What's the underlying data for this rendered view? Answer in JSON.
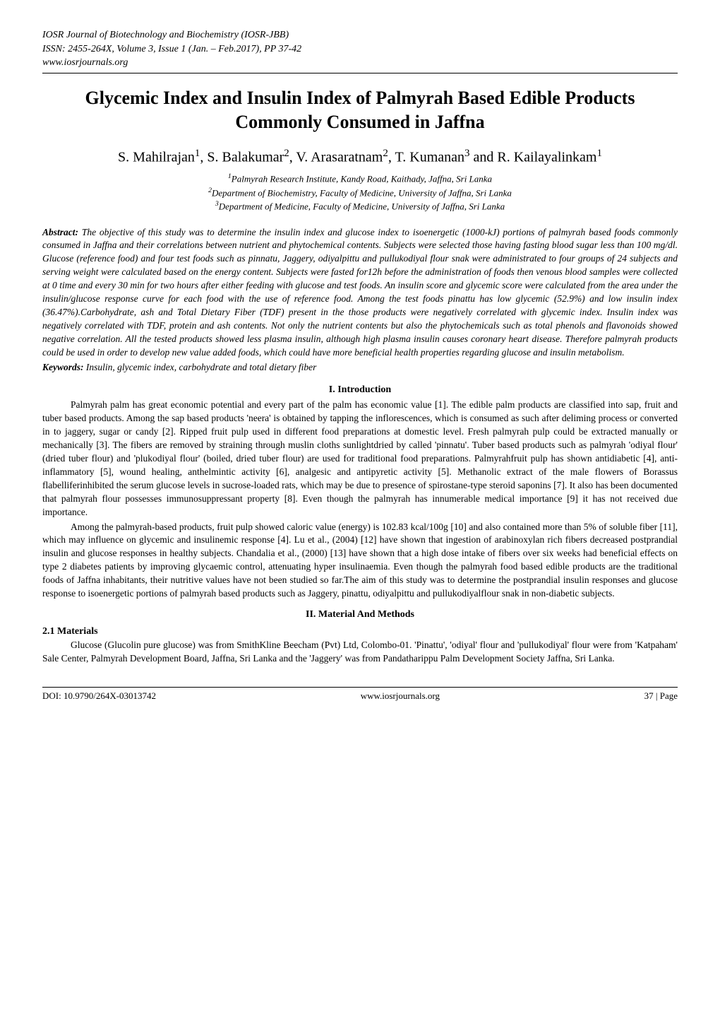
{
  "journalHeader": {
    "line1": "IOSR Journal of Biotechnology and Biochemistry (IOSR-JBB)",
    "line2": "ISSN: 2455-264X, Volume 3, Issue 1 (Jan. – Feb.2017), PP 37-42",
    "line3": "www.iosrjournals.org"
  },
  "title": "Glycemic Index and Insulin Index of Palmyrah Based Edible Products Commonly Consumed in Jaffna",
  "authorsHtml": "S. Mahilrajan<sup>1</sup>, S. Balakumar<sup>2</sup>, V. Arasaratnam<sup>2</sup>, T. Kumanan<sup>3</sup> and R. Kailayalinkam<sup>1</sup>",
  "affiliations": {
    "a1": "1Palmyrah Research Institute, Kandy Road, Kaithady, Jaffna, Sri Lanka",
    "a2": "2Department of Biochemistry, Faculty of Medicine, University of Jaffna, Sri Lanka",
    "a3": "3Department of Medicine, Faculty of Medicine, University of Jaffna, Sri Lanka"
  },
  "abstractLabel": "Abstract:",
  "abstractText": " The objective of this study was to determine the insulin index and glucose index to isoenergetic (1000-kJ) portions of palmyrah based foods commonly consumed in Jaffna and their correlations between nutrient and phytochemical contents.  Subjects were selected those having fasting blood sugar less than 100 mg/dl. Glucose (reference food) and four test foods such as pinnatu, Jaggery, odiyalpittu and pullukodiyal flour snak were administrated to four groups of 24 subjects and serving weight were calculated based on the energy content. Subjects were fasted for12h before the administration of foods then venous blood samples were collected at 0 time and every 30 min for two hours after either feeding with glucose and test foods.  An insulin score and glycemic score were calculated from the area under the insulin/glucose response curve for each food with the use of reference food. Among the test foods pinattu has low glycemic (52.9%) and low insulin index (36.47%).Carbohydrate, ash and Total Dietary Fiber (TDF) present in the those products were negatively correlated with glycemic index. Insulin index was negatively correlated with TDF, protein and ash contents. Not only the nutrient contents but also the phytochemicals such as total phenols and flavonoids showed negative correlation. All the tested products showed less plasma insulin, although high plasma insulin causes coronary heart disease. Therefore palmyrah products could be used in order to develop new value added foods, which could have more beneficial health properties regarding glucose and insulin metabolism.",
  "keywordsLabel": "Keywords:",
  "keywordsText": " Insulin, glycemic index, carbohydrate and total dietary fiber",
  "sections": {
    "introHeading": "I.   Introduction",
    "introP1": "Palmyrah palm has great economic potential and every part of the palm has economic value [1]. The edible palm products are classified into sap, fruit and tuber based products. Among the sap based products 'neera' is obtained by tapping the inflorescences, which is consumed as such after deliming process or converted in to jaggery, sugar or candy [2]. Ripped fruit pulp used in different food preparations at domestic level. Fresh palmyrah pulp could be extracted manually or mechanically [3]. The fibers are removed by straining through muslin cloths sunlightdried by called 'pinnatu'.  Tuber based products such as palmyrah 'odiyal flour' (dried tuber flour) and 'plukodiyal flour' (boiled, dried tuber flour) are used for traditional food preparations. Palmyrahfruit pulp has shown antidiabetic [4], anti-inflammatory [5], wound healing, anthelmintic activity [6], analgesic and antipyretic activity [5].  Methanolic extract of the male flowers of Borassus flabelliferinhibited the serum glucose levels in sucrose-loaded rats, which may be due to presence of spirostane-type steroid saponins [7]. It also has been documented that palmyrah flour possesses immunosuppressant property [8]. Even though the palmyrah has innumerable medical importance [9] it has not received due importance.",
    "introP2": "Among the palmyrah-based products, fruit pulp showed caloric value (energy) is 102.83 kcal/100g [10] and also contained more than 5% of soluble fiber [11], which may influence on glycemic and insulinemic response [4]. Lu et al., (2004) [12] have shown that ingestion of arabinoxylan rich fibers decreased postprandial insulin and glucose responses in healthy subjects. Chandalia et al., (2000) [13] have shown that a high dose intake of fibers over six weeks had beneficial effects on type 2 diabetes patients by improving glycaemic control, attenuating hyper insulinaemia.  Even though the palmyrah food based edible products are the traditional foods of Jaffna inhabitants, their nutritive values have not been studied so far.The aim of this study was to determine the postprandial insulin responses and glucose response to isoenergetic portions of palmyrah based products such as Jaggery, pinattu, odiyalpittu and pullukodiyalflour snak in non-diabetic subjects.",
    "methodsHeading": "II.  Material And Methods",
    "materialsSubheading": "2.1 Materials",
    "materialsP1": "Glucose (Glucolin pure glucose) was from SmithKline Beecham (Pvt) Ltd, Colombo-01. 'Pinattu', 'odiyal' flour and 'pullukodiyal' flour were from 'Katpaham' Sale Center, Palmyrah Development Board, Jaffna, Sri Lanka and the 'Jaggery' was from Pandatharippu Palm Development Society Jaffna, Sri Lanka."
  },
  "footer": {
    "doi": "DOI: 10.9790/264X-03013742",
    "site": "www.iosrjournals.org",
    "page": "37 | Page"
  }
}
